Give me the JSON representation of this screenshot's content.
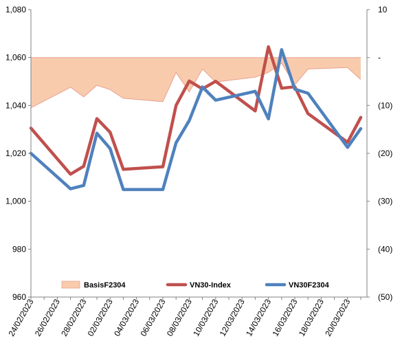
{
  "chart_data": {
    "type": "line",
    "title": "",
    "xlabel": "",
    "ylabel": "",
    "x_tick_labels": [
      "24/02/2023",
      "26/02/2023",
      "28/02/2023",
      "02/03/2023",
      "04/03/2023",
      "06/03/2023",
      "08/03/2023",
      "10/03/2023",
      "12/03/2023",
      "14/03/2023",
      "16/03/2023",
      "18/03/2023",
      "20/03/2023"
    ],
    "y_left": {
      "ylim": [
        960,
        1080
      ],
      "tick_labels": [
        "960",
        "980",
        "1,000",
        "1,020",
        "1,040",
        "1,060",
        "1,080"
      ]
    },
    "y_right": {
      "ylim": [
        -50,
        10
      ],
      "tick_labels": [
        "(50)",
        "(40)",
        "(30)",
        "(20)",
        "(10)",
        "-",
        "10"
      ]
    },
    "legend_position": "bottom",
    "series": [
      {
        "name": "BasisF2304",
        "axis": "right",
        "type": "area",
        "color": "#f9cbad",
        "edge_color": "#e8a090",
        "x": [
          "2023-02-24",
          "2023-02-27",
          "2023-02-28",
          "2023-03-01",
          "2023-03-02",
          "2023-03-03",
          "2023-03-06",
          "2023-03-07",
          "2023-03-08",
          "2023-03-09",
          "2023-03-10",
          "2023-03-13",
          "2023-03-14",
          "2023-03-15",
          "2023-03-16",
          "2023-03-17",
          "2023-03-20",
          "2023-03-21"
        ],
        "values": [
          -10.5,
          -6.2,
          -8.2,
          -5.8,
          -6.7,
          -8.5,
          -9.2,
          -3.1,
          -7.2,
          -2.4,
          -5.1,
          -4.1,
          -3.1,
          -1.2,
          -5.7,
          -2.4,
          -2.1,
          -4.6
        ]
      },
      {
        "name": "VN30-Index",
        "axis": "left",
        "type": "line",
        "color": "#c0504d",
        "x": [
          "2023-02-24",
          "2023-02-27",
          "2023-02-28",
          "2023-03-01",
          "2023-03-02",
          "2023-03-03",
          "2023-03-06",
          "2023-03-07",
          "2023-03-08",
          "2023-03-09",
          "2023-03-10",
          "2023-03-13",
          "2023-03-14",
          "2023-03-15",
          "2023-03-16",
          "2023-03-17",
          "2023-03-20",
          "2023-03-21"
        ],
        "values": [
          1030.5,
          1011.3,
          1014.6,
          1034.5,
          1028.8,
          1013.3,
          1014.4,
          1040.0,
          1050.2,
          1046.9,
          1050.1,
          1037.7,
          1064.5,
          1047.2,
          1047.8,
          1036.6,
          1024.6,
          1035.0
        ]
      },
      {
        "name": "VN30F2304",
        "axis": "left",
        "type": "line",
        "color": "#4f81bd",
        "x": [
          "2023-02-24",
          "2023-02-27",
          "2023-02-28",
          "2023-03-01",
          "2023-03-02",
          "2023-03-03",
          "2023-03-06",
          "2023-03-07",
          "2023-03-08",
          "2023-03-09",
          "2023-03-10",
          "2023-03-13",
          "2023-03-14",
          "2023-03-15",
          "2023-03-16",
          "2023-03-17",
          "2023-03-20",
          "2023-03-21"
        ],
        "values": [
          1020.0,
          1005.2,
          1006.6,
          1028.4,
          1022.0,
          1004.9,
          1004.9,
          1024.4,
          1033.7,
          1047.7,
          1042.2,
          1045.9,
          1034.4,
          1063.3,
          1046.8,
          1045.1,
          1022.5,
          1030.3
        ]
      }
    ]
  }
}
